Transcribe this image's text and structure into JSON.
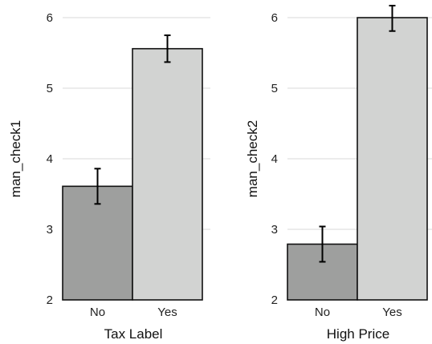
{
  "chart_data": [
    {
      "type": "bar",
      "xlabel": "Tax Label",
      "ylabel": "man_check1",
      "categories": [
        "No",
        "Yes"
      ],
      "values": [
        3.61,
        5.56
      ],
      "error_low": [
        3.36,
        5.37
      ],
      "error_high": [
        3.86,
        5.75
      ],
      "bar_colors": [
        "#9e9f9e",
        "#d2d3d2"
      ],
      "ylim": [
        2,
        6.25
      ],
      "yticks": [
        "2",
        "3",
        "4",
        "5",
        "6"
      ],
      "grid": "horizontal",
      "legend": "none"
    },
    {
      "type": "bar",
      "xlabel": "High Price",
      "ylabel": "man_check2",
      "categories": [
        "No",
        "Yes"
      ],
      "values": [
        2.79,
        6.0
      ],
      "error_low": [
        2.54,
        5.81
      ],
      "error_high": [
        3.04,
        6.17
      ],
      "bar_colors": [
        "#9e9f9e",
        "#d2d3d2"
      ],
      "ylim": [
        2,
        6.25
      ],
      "yticks": [
        "2",
        "3",
        "4",
        "5",
        "6"
      ],
      "grid": "horizontal",
      "legend": "none"
    }
  ]
}
